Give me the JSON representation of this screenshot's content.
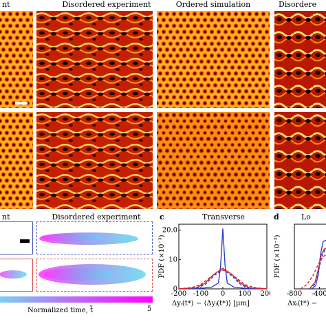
{
  "top_titles": {
    "left_partial": "nt",
    "disordered_experiment": "Disordered experiment",
    "ordered_simulation": "Ordered simulation",
    "right_partial": "Disordere"
  },
  "bottom_panels": {
    "left_partial_label": "nt",
    "disordered_experiment": "Disordered experiment",
    "colorbar": {
      "label": "Normalized time, t̃",
      "max_label": "5",
      "colors": [
        "#7ad0f0",
        "#ff00ff"
      ]
    },
    "box_colors": {
      "blue": "#4a57b5",
      "red": "#d9534f"
    }
  },
  "panel_c": {
    "letter": "c",
    "title": "Transverse",
    "ylabel": "PDF (×10⁻³)",
    "xlabel": "Δyᵢ(t*) − ⟨Δyᵢ(t*)⟩ [μm]"
  },
  "panel_d": {
    "letter": "d",
    "title": "Lo",
    "ylabel": "PDF (×10⁻³)",
    "xlabel": "Δxᵢ(t*) −"
  },
  "chart_data": [
    {
      "type": "line",
      "title": "Transverse",
      "xlabel": "Δyᵢ(t*) − ⟨Δyᵢ(t*)⟩ [μm]",
      "ylabel": "PDF (×10⁻³)",
      "xlim": [
        -200,
        200
      ],
      "ylim": [
        0,
        22
      ],
      "xticks": [
        -200,
        -100,
        0,
        100,
        200
      ],
      "yticks": [
        0,
        10,
        20
      ],
      "yticklabels": [
        "0",
        "10",
        "20.0"
      ],
      "series": [
        {
          "color": "#2a3fd0",
          "style": "solid",
          "x": [
            -200,
            -100,
            -50,
            -20,
            -10,
            0,
            10,
            20,
            50,
            100,
            200
          ],
          "y": [
            0,
            0.2,
            0.6,
            2.0,
            8.0,
            20.5,
            8.0,
            2.0,
            0.6,
            0.2,
            0
          ]
        },
        {
          "color": "#2a3fd0",
          "style": "dashed",
          "x": [
            -200,
            -120,
            -80,
            -40,
            0,
            40,
            80,
            120,
            200
          ],
          "y": [
            0,
            0.2,
            1.5,
            4.5,
            6.5,
            4.5,
            1.5,
            0.2,
            0
          ]
        },
        {
          "color": "#d62728",
          "style": "solid",
          "x": [
            -200,
            -120,
            -80,
            -40,
            0,
            40,
            80,
            120,
            200
          ],
          "y": [
            0,
            0.4,
            2.0,
            5.0,
            7.0,
            5.0,
            2.0,
            0.4,
            0
          ]
        },
        {
          "color": "#d62728",
          "style": "dashed",
          "x": [
            -200,
            -140,
            -100,
            -60,
            -20,
            0,
            20,
            60,
            100,
            140,
            200
          ],
          "y": [
            0,
            0.5,
            1.5,
            3.8,
            6.0,
            6.3,
            6.0,
            3.8,
            1.5,
            0.5,
            0
          ]
        }
      ]
    },
    {
      "type": "line",
      "title": "Lo",
      "xlabel": "Δxᵢ(t*) −",
      "ylabel": "PDF (×10⁻³)",
      "xlim": [
        -800,
        -250
      ],
      "ylim": [
        0,
        12
      ],
      "xticks": [
        -800,
        -400
      ],
      "series": [
        {
          "color": "#2a3fd0",
          "style": "solid",
          "x": [
            -520,
            -460,
            -420,
            -380,
            -340,
            -300,
            -260
          ],
          "y": [
            0,
            0.6,
            2.5,
            6.5,
            8.8,
            9.0,
            8.8
          ]
        },
        {
          "color": "#2a3fd0",
          "style": "dashed",
          "x": [
            -560,
            -480,
            -420,
            -360,
            -300,
            -260
          ],
          "y": [
            0,
            0.8,
            3.0,
            6.0,
            7.5,
            7.6
          ]
        },
        {
          "color": "#d62728",
          "style": "solid",
          "x": [
            -560,
            -470,
            -420,
            -370,
            -320,
            -270
          ],
          "y": [
            0,
            1.2,
            3.5,
            6.3,
            7.4,
            7.5
          ]
        },
        {
          "color": "#d62728",
          "style": "dashed",
          "x": [
            -700,
            -600,
            -500,
            -420,
            -340,
            -260
          ],
          "y": [
            0,
            0.8,
            2.5,
            4.5,
            6.0,
            6.5
          ]
        }
      ]
    }
  ]
}
